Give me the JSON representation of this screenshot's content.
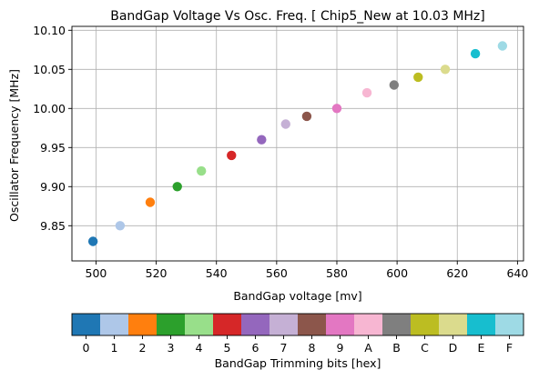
{
  "chart_data": {
    "type": "scatter",
    "title": "BandGap Voltage Vs Osc. Freq. [ Chip5_New at 10.03 MHz]",
    "xlabel": "BandGap voltage [mv]",
    "ylabel": "Oscillator Frequency [MHz]",
    "xlim": [
      492,
      642
    ],
    "ylim": [
      9.805,
      10.105
    ],
    "xticks": [
      500,
      520,
      540,
      560,
      580,
      600,
      620,
      640
    ],
    "yticks": [
      9.85,
      9.9,
      9.95,
      10.0,
      10.05,
      10.1
    ],
    "grid": true,
    "points": [
      {
        "x": 499,
        "y": 9.83,
        "code": "0"
      },
      {
        "x": 508,
        "y": 9.85,
        "code": "1"
      },
      {
        "x": 518,
        "y": 9.88,
        "code": "2"
      },
      {
        "x": 527,
        "y": 9.9,
        "code": "3"
      },
      {
        "x": 535,
        "y": 9.92,
        "code": "4"
      },
      {
        "x": 545,
        "y": 9.94,
        "code": "5"
      },
      {
        "x": 555,
        "y": 9.96,
        "code": "6"
      },
      {
        "x": 563,
        "y": 9.98,
        "code": "7"
      },
      {
        "x": 570,
        "y": 9.99,
        "code": "8"
      },
      {
        "x": 580,
        "y": 10.0,
        "code": "9"
      },
      {
        "x": 590,
        "y": 10.02,
        "code": "A"
      },
      {
        "x": 599,
        "y": 10.03,
        "code": "B"
      },
      {
        "x": 607,
        "y": 10.04,
        "code": "C"
      },
      {
        "x": 616,
        "y": 10.05,
        "code": "D"
      },
      {
        "x": 626,
        "y": 10.07,
        "code": "E"
      },
      {
        "x": 635,
        "y": 10.08,
        "code": "F"
      }
    ],
    "colorbar": {
      "label": "BandGap Trimming bits [hex]",
      "codes": [
        "0",
        "1",
        "2",
        "3",
        "4",
        "5",
        "6",
        "7",
        "8",
        "9",
        "A",
        "B",
        "C",
        "D",
        "E",
        "F"
      ],
      "colors": [
        "#1f77b4",
        "#aec7e8",
        "#ff7f0e",
        "#2ca02c",
        "#98df8a",
        "#d62728",
        "#9467bd",
        "#c5b0d5",
        "#8c564b",
        "#e377c2",
        "#f7b6d2",
        "#7f7f7f",
        "#bcbd22",
        "#dbdb8d",
        "#17becf",
        "#9edae5"
      ]
    }
  }
}
